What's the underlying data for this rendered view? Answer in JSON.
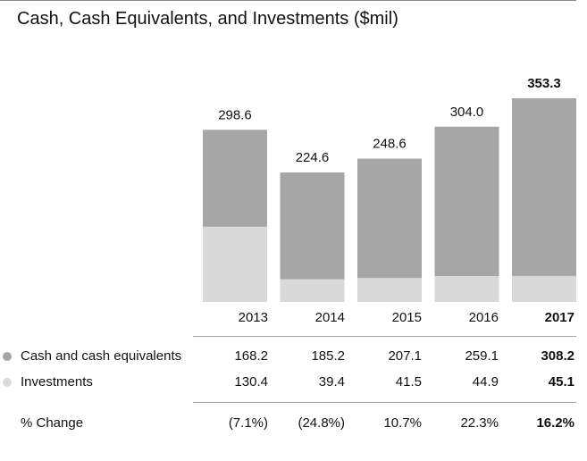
{
  "chart_data": {
    "type": "bar",
    "stacked": true,
    "title": "Cash, Cash Equivalents, and Investments ($mil)",
    "categories": [
      "2013",
      "2014",
      "2015",
      "2016",
      "2017"
    ],
    "series": [
      {
        "name": "Cash and cash equivalents",
        "values": [
          168.2,
          185.2,
          207.1,
          259.1,
          308.2
        ],
        "color": "#a6a6a6"
      },
      {
        "name": "Investments",
        "values": [
          130.4,
          39.4,
          41.5,
          44.9,
          45.1
        ],
        "color": "#d9d9d9"
      }
    ],
    "totals": [
      "298.6",
      "224.6",
      "248.6",
      "304.0",
      "353.3"
    ],
    "ylim": [
      0,
      353.3
    ],
    "highlight_category": "2017"
  },
  "table": {
    "years": [
      "2013",
      "2014",
      "2015",
      "2016",
      "2017"
    ],
    "rows": [
      {
        "label": "Cash and cash equivalents",
        "values": [
          "168.2",
          "185.2",
          "207.1",
          "259.1",
          "308.2"
        ]
      },
      {
        "label": "Investments",
        "values": [
          "130.4",
          "39.4",
          "41.5",
          "44.9",
          "45.1"
        ]
      },
      {
        "label": "% Change",
        "values": [
          "(7.1%)",
          "(24.8%)",
          "10.7%",
          "22.3%",
          "16.2%"
        ]
      }
    ]
  }
}
